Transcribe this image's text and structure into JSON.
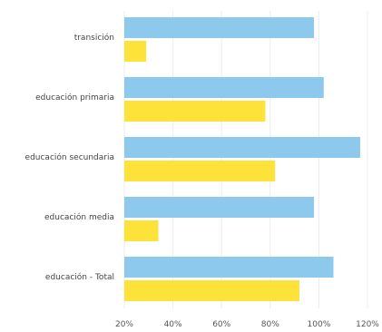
{
  "chart_data": {
    "type": "bar",
    "orientation": "horizontal",
    "categories": [
      "transición",
      "educación primaria",
      "educación secundaria",
      "educación media",
      "educación - Total"
    ],
    "series": [
      {
        "color": "#8cc9ec",
        "values": [
          98,
          102,
          117,
          98,
          106
        ]
      },
      {
        "color": "#fde23a",
        "values": [
          29,
          78,
          82,
          34,
          92
        ]
      }
    ],
    "xlim": [
      20,
      120
    ],
    "xticks": [
      "20%",
      "40%",
      "60%",
      "80%",
      "100%",
      "120%"
    ],
    "tick_values": [
      20,
      40,
      60,
      80,
      100,
      120
    ],
    "grid": true,
    "legend": "none"
  }
}
